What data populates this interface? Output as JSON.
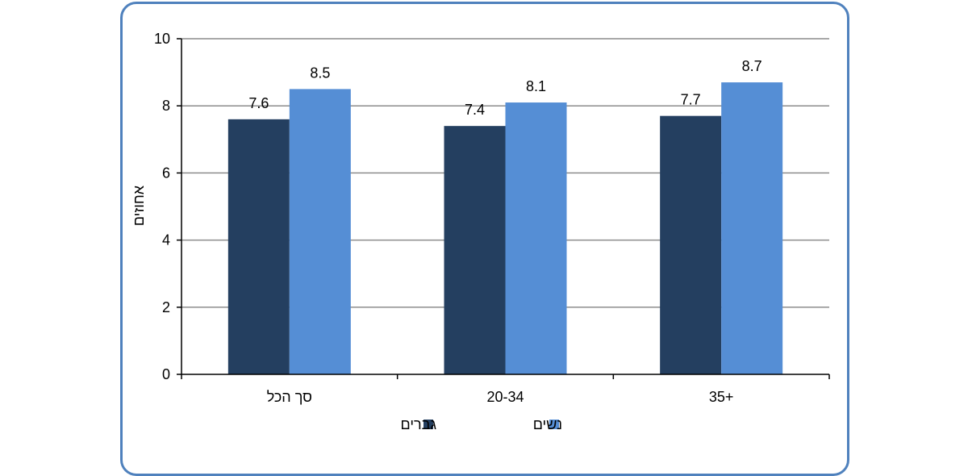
{
  "chart_data": {
    "type": "bar",
    "title": "",
    "xlabel": "",
    "ylabel": "אחוזים",
    "ylim": [
      0,
      10
    ],
    "yticks": [
      0,
      2,
      4,
      6,
      8,
      10
    ],
    "categories": [
      "סך הכל",
      "20-34",
      "35+"
    ],
    "series": [
      {
        "name": "גברים",
        "values": [
          7.6,
          7.4,
          7.7
        ],
        "color": "#243f60"
      },
      {
        "name": "נשים",
        "values": [
          8.5,
          8.1,
          8.7
        ],
        "color": "#558ed5"
      }
    ],
    "grid": true,
    "legend_position": "bottom"
  },
  "colors": {
    "frame": "#4f81bd",
    "gridline": "#8c8c8c"
  }
}
